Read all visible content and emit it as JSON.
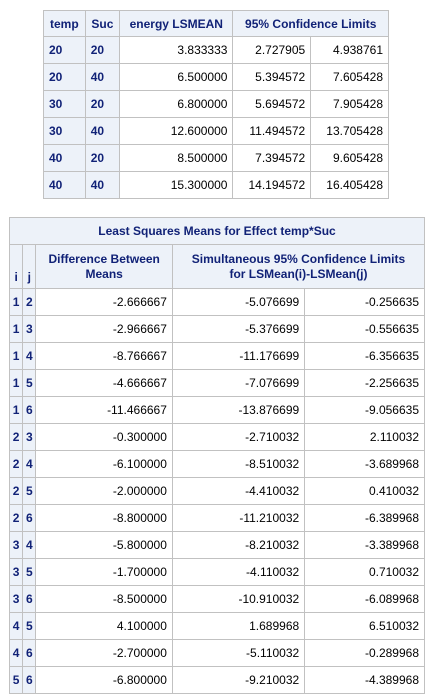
{
  "lsmeans_table": {
    "headers": [
      "temp",
      "Suc",
      "energy LSMEAN",
      "95% Confidence Limits"
    ],
    "rows": [
      {
        "temp": "20",
        "suc": "20",
        "lsmean": "3.833333",
        "lower": "2.727905",
        "upper": "4.938761"
      },
      {
        "temp": "20",
        "suc": "40",
        "lsmean": "6.500000",
        "lower": "5.394572",
        "upper": "7.605428"
      },
      {
        "temp": "30",
        "suc": "20",
        "lsmean": "6.800000",
        "lower": "5.694572",
        "upper": "7.905428"
      },
      {
        "temp": "30",
        "suc": "40",
        "lsmean": "12.600000",
        "lower": "11.494572",
        "upper": "13.705428"
      },
      {
        "temp": "40",
        "suc": "20",
        "lsmean": "8.500000",
        "lower": "7.394572",
        "upper": "9.605428"
      },
      {
        "temp": "40",
        "suc": "40",
        "lsmean": "15.300000",
        "lower": "14.194572",
        "upper": "16.405428"
      }
    ]
  },
  "diff_table": {
    "title": "Least Squares Means for Effect temp*Suc",
    "headers": {
      "i": "i",
      "j": "j",
      "diff_line1": "Difference Between",
      "diff_line2": "Means",
      "ci_line1": "Simultaneous 95% Confidence Limits",
      "ci_line2": "for LSMean(i)-LSMean(j)"
    },
    "rows": [
      {
        "i": "1",
        "j": "2",
        "diff": "-2.666667",
        "lower": "-5.076699",
        "upper": "-0.256635"
      },
      {
        "i": "1",
        "j": "3",
        "diff": "-2.966667",
        "lower": "-5.376699",
        "upper": "-0.556635"
      },
      {
        "i": "1",
        "j": "4",
        "diff": "-8.766667",
        "lower": "-11.176699",
        "upper": "-6.356635"
      },
      {
        "i": "1",
        "j": "5",
        "diff": "-4.666667",
        "lower": "-7.076699",
        "upper": "-2.256635"
      },
      {
        "i": "1",
        "j": "6",
        "diff": "-11.466667",
        "lower": "-13.876699",
        "upper": "-9.056635"
      },
      {
        "i": "2",
        "j": "3",
        "diff": "-0.300000",
        "lower": "-2.710032",
        "upper": "2.110032"
      },
      {
        "i": "2",
        "j": "4",
        "diff": "-6.100000",
        "lower": "-8.510032",
        "upper": "-3.689968"
      },
      {
        "i": "2",
        "j": "5",
        "diff": "-2.000000",
        "lower": "-4.410032",
        "upper": "0.410032"
      },
      {
        "i": "2",
        "j": "6",
        "diff": "-8.800000",
        "lower": "-11.210032",
        "upper": "-6.389968"
      },
      {
        "i": "3",
        "j": "4",
        "diff": "-5.800000",
        "lower": "-8.210032",
        "upper": "-3.389968"
      },
      {
        "i": "3",
        "j": "5",
        "diff": "-1.700000",
        "lower": "-4.110032",
        "upper": "0.710032"
      },
      {
        "i": "3",
        "j": "6",
        "diff": "-8.500000",
        "lower": "-10.910032",
        "upper": "-6.089968"
      },
      {
        "i": "4",
        "j": "5",
        "diff": "4.100000",
        "lower": "1.689968",
        "upper": "6.510032"
      },
      {
        "i": "4",
        "j": "6",
        "diff": "-2.700000",
        "lower": "-5.110032",
        "upper": "-0.289968"
      },
      {
        "i": "5",
        "j": "6",
        "diff": "-6.800000",
        "lower": "-9.210032",
        "upper": "-4.389968"
      }
    ]
  },
  "colors": {
    "header_background": "#edf2f9",
    "header_text": "#112277",
    "border": "#c1c1c1",
    "cell_background": "#ffffff"
  }
}
